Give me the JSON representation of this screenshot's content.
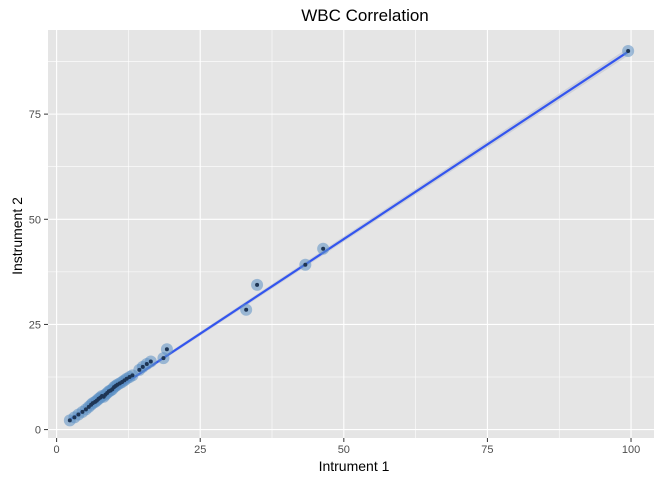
{
  "chart_data": {
    "type": "scatter",
    "title": "WBC Correlation",
    "xlabel": "Intrument 1",
    "ylabel": "Instrument 2",
    "xlim": [
      -1.5,
      104
    ],
    "ylim": [
      -2,
      95
    ],
    "x_ticks": [
      0,
      25,
      50,
      75,
      100
    ],
    "y_ticks": [
      0,
      25,
      50,
      75
    ],
    "x_tick_labels": [
      "0",
      "25",
      "50",
      "75",
      "100"
    ],
    "y_tick_labels": [
      "0",
      "25",
      "50",
      "75"
    ],
    "grid": true,
    "legend": "none",
    "colors": {
      "panel": "#e5e5e5",
      "grid": "#ffffff",
      "point_halo": "#5b8fc4",
      "point_core": "#1e3554",
      "fit_line": "#3355ee",
      "ci_band": "#c4c9d6"
    },
    "series": [
      {
        "x": [
          2.3,
          3.1,
          3.8,
          4.5,
          5.1,
          5.6,
          6.0,
          6.3,
          6.7,
          7.0,
          7.3,
          7.6,
          7.9,
          8.2,
          8.5,
          8.8,
          9.1,
          9.4,
          9.7,
          10.0,
          10.3,
          10.6,
          11.0,
          11.4,
          11.8,
          12.2,
          12.7,
          13.2,
          14.4,
          15.0,
          15.7,
          16.4,
          18.6,
          19.2,
          33.0,
          34.9,
          43.3,
          46.4,
          99.5
        ],
        "y": [
          2.2,
          2.9,
          3.6,
          4.2,
          4.8,
          5.4,
          5.9,
          6.3,
          6.6,
          6.9,
          7.3,
          7.6,
          8.0,
          7.8,
          8.3,
          8.7,
          9.1,
          9.3,
          9.6,
          10.1,
          10.4,
          10.7,
          11.0,
          11.3,
          11.7,
          12.1,
          12.5,
          12.9,
          14.2,
          14.9,
          15.6,
          16.2,
          17.0,
          19.1,
          28.5,
          34.4,
          39.2,
          43.0,
          90.0
        ]
      }
    ],
    "fit": {
      "slope": 0.9,
      "intercept": 0.3,
      "x_range": [
        2.3,
        99.5
      ]
    }
  }
}
